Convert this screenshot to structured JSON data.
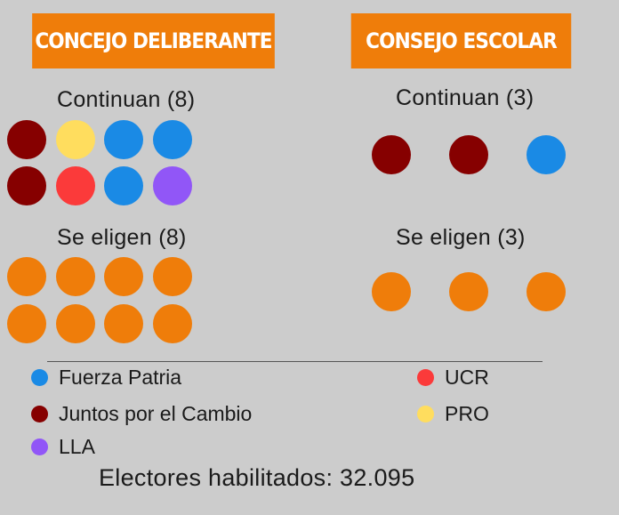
{
  "headers": {
    "concejo": "CONCEJO DELIBERANTE",
    "consejo": "CONSEJO ESCOLAR"
  },
  "concejo": {
    "continuan_label": "Continuan (8)",
    "se_eligen_label": "Se eligen (8)",
    "continuan": [
      "Juntos por el Cambio",
      "PRO",
      "Fuerza Patria",
      "Fuerza Patria",
      "Juntos por el Cambio",
      "UCR",
      "Fuerza Patria",
      "LLA"
    ],
    "se_eligen_count": 8
  },
  "consejo": {
    "continuan_label": "Continuan (3)",
    "se_eligen_label": "Se eligen  (3)",
    "continuan": [
      "Juntos por el Cambio",
      "Juntos por el Cambio",
      "Fuerza Patria"
    ],
    "se_eligen_count": 3
  },
  "legend": [
    {
      "name": "Fuerza Patria",
      "color": "#1a8ae5"
    },
    {
      "name": "Juntos por el Cambio",
      "color": "#860000"
    },
    {
      "name": "LLA",
      "color": "#9156f7"
    },
    {
      "name": "UCR",
      "color": "#fb3a3a"
    },
    {
      "name": "PRO",
      "color": "#ffdd5e"
    }
  ],
  "pending_color": "#ef7d0a",
  "electores": "Electores habilitados: 32.095"
}
